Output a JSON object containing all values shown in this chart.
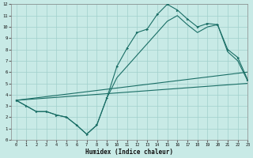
{
  "xlabel": "Humidex (Indice chaleur)",
  "bg_color": "#c8eae6",
  "grid_color": "#a0d0cc",
  "line_color": "#1a6e66",
  "xlim": [
    -0.5,
    23
  ],
  "ylim": [
    0,
    12
  ],
  "xticks": [
    0,
    1,
    2,
    3,
    4,
    5,
    6,
    7,
    8,
    9,
    10,
    11,
    12,
    13,
    14,
    15,
    16,
    17,
    18,
    19,
    20,
    21,
    22,
    23
  ],
  "yticks": [
    0,
    1,
    2,
    3,
    4,
    5,
    6,
    7,
    8,
    9,
    10,
    11,
    12
  ],
  "curve1_x": [
    0,
    1,
    2,
    3,
    4,
    5,
    6,
    7,
    8,
    9,
    10,
    11,
    12,
    13,
    14,
    15,
    16,
    17,
    18,
    19,
    20,
    21,
    22,
    23
  ],
  "curve1_y": [
    3.5,
    3.0,
    2.5,
    2.5,
    2.2,
    2.0,
    1.3,
    0.5,
    1.3,
    3.7,
    6.5,
    8.1,
    9.5,
    9.8,
    11.1,
    12.0,
    11.5,
    10.7,
    10.0,
    10.3,
    10.2,
    8.0,
    7.3,
    5.3
  ],
  "curve2_x": [
    0,
    1,
    2,
    3,
    4,
    5,
    6,
    7,
    8,
    9,
    10,
    11,
    12,
    13,
    14,
    15,
    16,
    17,
    18,
    19,
    20,
    21,
    22,
    23
  ],
  "curve2_y": [
    3.5,
    3.0,
    2.5,
    2.5,
    2.2,
    2.0,
    1.3,
    0.5,
    1.3,
    3.7,
    5.5,
    6.5,
    7.5,
    8.5,
    9.5,
    10.5,
    11.0,
    10.2,
    9.5,
    10.0,
    10.2,
    7.8,
    7.0,
    5.2
  ],
  "line3_x": [
    0,
    23
  ],
  "line3_y": [
    3.5,
    5.0
  ],
  "line4_x": [
    0,
    23
  ],
  "line4_y": [
    3.5,
    6.0
  ]
}
